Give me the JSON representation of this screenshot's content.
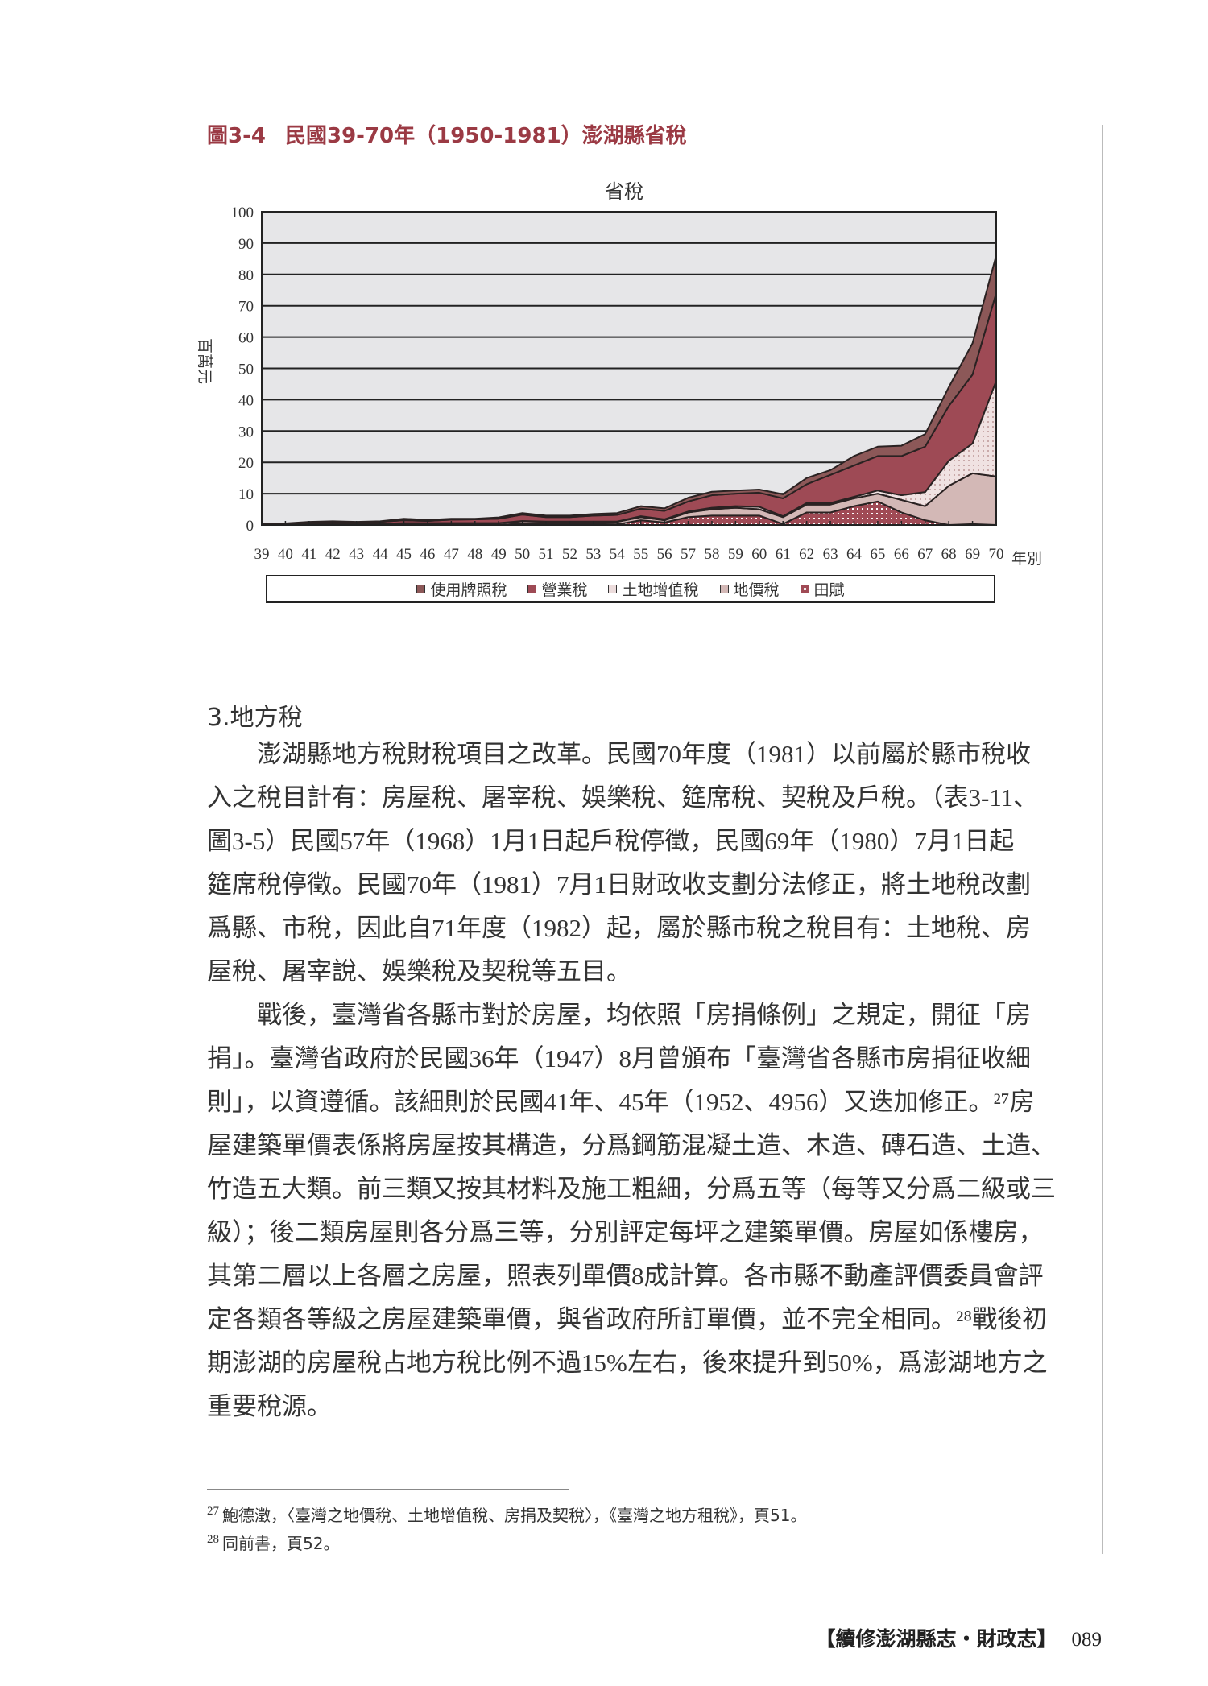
{
  "figure": {
    "number": "圖3-4",
    "title": "民國39-70年（1950-1981）澎湖縣省稅"
  },
  "chart_data": {
    "type": "area",
    "stacked": true,
    "title": "省稅",
    "xlabel": "年別",
    "ylabel": "百萬元",
    "ylim": [
      0,
      100
    ],
    "yticks": [
      0,
      10,
      20,
      30,
      40,
      50,
      60,
      70,
      80,
      90,
      100
    ],
    "grid": true,
    "legend_position": "bottom",
    "categories": [
      "39",
      "40",
      "41",
      "42",
      "43",
      "44",
      "45",
      "46",
      "47",
      "48",
      "49",
      "50",
      "51",
      "52",
      "53",
      "54",
      "55",
      "56",
      "57",
      "58",
      "59",
      "60",
      "61",
      "62",
      "63",
      "64",
      "65",
      "66",
      "67",
      "68",
      "69",
      "70"
    ],
    "series": [
      {
        "name": "使用牌照稅",
        "color": "#8c5858",
        "pattern": "solid",
        "values": [
          0.1,
          0.1,
          0.2,
          0.2,
          0.2,
          0.2,
          0.5,
          0.3,
          0.3,
          0.2,
          0.4,
          0.5,
          0.5,
          0.5,
          0.5,
          0.6,
          0.8,
          0.8,
          1.2,
          1.1,
          1,
          1,
          1.3,
          2,
          1.5,
          3,
          3,
          3.3,
          4,
          6,
          10,
          12
        ]
      },
      {
        "name": "營業稅",
        "color": "#9e4a55",
        "pattern": "solid",
        "values": [
          0,
          0.1,
          0.4,
          0.6,
          0.4,
          0.6,
          0.9,
          0.7,
          1.1,
          1.2,
          1.4,
          2,
          1.4,
          1.4,
          1.9,
          2.1,
          2.4,
          2.7,
          3.2,
          4,
          4,
          4.5,
          5.7,
          6,
          9,
          10,
          11,
          12.5,
          14.5,
          17.5,
          22,
          28
        ]
      },
      {
        "name": "土地增值稅",
        "color": "#ecdcdc",
        "pattern": "dots",
        "values": [
          0.1,
          0.1,
          0.1,
          0.1,
          0.1,
          0.1,
          0.1,
          0.1,
          0.1,
          0.1,
          0.1,
          0.1,
          0.1,
          0.1,
          0.1,
          0.1,
          0.3,
          0.3,
          0.3,
          0.5,
          0.5,
          0.8,
          0.3,
          0.5,
          0.5,
          0.5,
          1,
          1.5,
          4.5,
          8,
          9.5,
          30.5
        ]
      },
      {
        "name": "地價稅",
        "color": "#d3b8b6",
        "pattern": "solid",
        "values": [
          0.2,
          0.2,
          0.3,
          0.3,
          0.3,
          0.3,
          0.5,
          0.5,
          0.5,
          0.5,
          0.5,
          0.7,
          0.7,
          0.7,
          0.7,
          0.8,
          1,
          0.7,
          1.5,
          2,
          2.5,
          2,
          2.2,
          2.5,
          2.5,
          2.5,
          2.5,
          4,
          4.5,
          12.5,
          16.2,
          15.5
        ]
      },
      {
        "name": "田賦",
        "color": "#a04a55",
        "pattern": "white-dots",
        "values": [
          0,
          0,
          0,
          0,
          0,
          0,
          0,
          0,
          0,
          0,
          0,
          0.5,
          0.3,
          0.3,
          0.3,
          0.2,
          1.5,
          0.8,
          2.5,
          3,
          3,
          3,
          0.3,
          4,
          4,
          6,
          7.5,
          4,
          1.5,
          0,
          0.3,
          0
        ]
      }
    ]
  },
  "section": {
    "heading": "3.地方稅"
  },
  "paragraphs": [
    {
      "lines": [
        "　　澎湖縣地方稅財稅項目之改革。民國70年度（1981）以前屬於縣市稅收",
        "入之稅目計有：房屋稅、屠宰稅、娛樂稅、筵席稅、契稅及戶稅。（表3-11、",
        "圖3-5）民國57年（1968）1月1日起戶稅停徵，民國69年（1980）7月1日起",
        "筵席稅停徵。民國70年（1981）7月1日財政收支劃分法修正，將土地稅改劃",
        "爲縣、市稅，因此自71年度（1982）起，屬於縣市稅之稅目有：土地稅、房",
        "屋稅、屠宰說、娛樂稅及契稅等五目。"
      ]
    },
    {
      "lines": [
        "　　戰後，臺灣省各縣市對於房屋，均依照「房捐條例」之規定，開征「房",
        "捐」。臺灣省政府於民國36年（1947）8月曾頒布「臺灣省各縣市房捐征收細",
        "則」，以資遵循。該細則於民國41年、45年（1952、4956）又迭加修正。²⁷房",
        "屋建築單價表係將房屋按其構造，分爲鋼筋混凝土造、木造、磚石造、土造、",
        "竹造五大類。前三類又按其材料及施工粗細，分爲五等（每等又分爲二級或三",
        "級）；後二類房屋則各分爲三等，分別評定每坪之建築單價。房屋如係樓房，",
        "其第二層以上各層之房屋，照表列單價8成計算。各市縣不動產評價委員會評",
        "定各類各等級之房屋建築單價，與省政府所訂單價，並不完全相同。²⁸戰後初",
        "期澎湖的房屋稅占地方稅比例不過15%左右，後來提升到50%，爲澎湖地方之",
        "重要稅源。"
      ]
    }
  ],
  "footnotes": [
    {
      "number": "27",
      "text": "鮑德澂，〈臺灣之地價稅、土地增值稅、房捐及契稅〉，《臺灣之地方租稅》，頁51。"
    },
    {
      "number": "28",
      "text": "同前書，頁52。"
    }
  ],
  "footer": {
    "book_title": "【續修澎湖縣志・財政志】",
    "page_number": "089"
  }
}
